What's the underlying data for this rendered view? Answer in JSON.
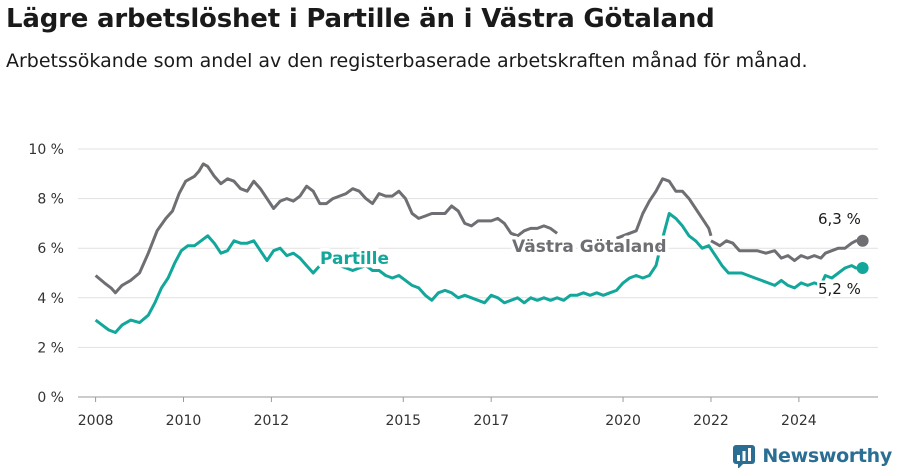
{
  "title": "Lägre arbetslöshet i Partille än i Västra Götaland",
  "subtitle": "Arbetssökande som andel av den registerbaserade arbetskraften månad för månad.",
  "brand": {
    "name": "Newsworthy",
    "color": "#2a6f93"
  },
  "chart_data": {
    "type": "line",
    "title": "Lägre arbetslöshet i Partille än i Västra Götaland",
    "xlabel": "",
    "ylabel": "",
    "xlim": [
      2007.6,
      2025.8
    ],
    "ylim": [
      0,
      10
    ],
    "xticks": [
      2008,
      2010,
      2012,
      2015,
      2017,
      2020,
      2022,
      2024
    ],
    "yticks": [
      {
        "value": 0,
        "label": "0 %"
      },
      {
        "value": 2,
        "label": "2 %"
      },
      {
        "value": 4,
        "label": "4 %"
      },
      {
        "value": 6,
        "label": "6 %"
      },
      {
        "value": 8,
        "label": "8 %"
      },
      {
        "value": 10,
        "label": "10 %"
      }
    ],
    "grid": true,
    "legend": "inline labels",
    "series": [
      {
        "name": "Västra Götaland",
        "color": "#6e6e73",
        "last_value_label": "6,3 %",
        "points": [
          [
            2008.0,
            4.9
          ],
          [
            2008.2,
            4.6
          ],
          [
            2008.35,
            4.4
          ],
          [
            2008.45,
            4.2
          ],
          [
            2008.6,
            4.5
          ],
          [
            2008.8,
            4.7
          ],
          [
            2009.0,
            5.0
          ],
          [
            2009.2,
            5.8
          ],
          [
            2009.4,
            6.7
          ],
          [
            2009.6,
            7.2
          ],
          [
            2009.75,
            7.5
          ],
          [
            2009.9,
            8.2
          ],
          [
            2010.05,
            8.7
          ],
          [
            2010.25,
            8.9
          ],
          [
            2010.35,
            9.1
          ],
          [
            2010.45,
            9.4
          ],
          [
            2010.55,
            9.3
          ],
          [
            2010.7,
            8.9
          ],
          [
            2010.85,
            8.6
          ],
          [
            2011.0,
            8.8
          ],
          [
            2011.15,
            8.7
          ],
          [
            2011.3,
            8.4
          ],
          [
            2011.45,
            8.3
          ],
          [
            2011.6,
            8.7
          ],
          [
            2011.75,
            8.4
          ],
          [
            2011.9,
            8.0
          ],
          [
            2012.05,
            7.6
          ],
          [
            2012.2,
            7.9
          ],
          [
            2012.35,
            8.0
          ],
          [
            2012.5,
            7.9
          ],
          [
            2012.65,
            8.1
          ],
          [
            2012.8,
            8.5
          ],
          [
            2012.95,
            8.3
          ],
          [
            2013.1,
            7.8
          ],
          [
            2013.25,
            7.8
          ],
          [
            2013.4,
            8.0
          ],
          [
            2013.55,
            8.1
          ],
          [
            2013.7,
            8.2
          ],
          [
            2013.85,
            8.4
          ],
          [
            2014.0,
            8.3
          ],
          [
            2014.15,
            8.0
          ],
          [
            2014.3,
            7.8
          ],
          [
            2014.45,
            8.2
          ],
          [
            2014.6,
            8.1
          ],
          [
            2014.75,
            8.1
          ],
          [
            2014.9,
            8.3
          ],
          [
            2015.05,
            8.0
          ],
          [
            2015.2,
            7.4
          ],
          [
            2015.35,
            7.2
          ],
          [
            2015.5,
            7.3
          ],
          [
            2015.65,
            7.4
          ],
          [
            2015.8,
            7.4
          ],
          [
            2015.95,
            7.4
          ],
          [
            2016.1,
            7.7
          ],
          [
            2016.25,
            7.5
          ],
          [
            2016.4,
            7.0
          ],
          [
            2016.55,
            6.9
          ],
          [
            2016.7,
            7.1
          ],
          [
            2016.85,
            7.1
          ],
          [
            2017.0,
            7.1
          ],
          [
            2017.15,
            7.2
          ],
          [
            2017.3,
            7.0
          ],
          [
            2017.45,
            6.6
          ],
          [
            2017.6,
            6.5
          ],
          [
            2017.75,
            6.7
          ],
          [
            2017.9,
            6.8
          ],
          [
            2018.05,
            6.8
          ],
          [
            2018.2,
            6.9
          ],
          [
            2018.35,
            6.8
          ],
          [
            2018.5,
            6.6
          ]
        ],
        "points2": [
          [
            2022.0,
            6.3
          ],
          [
            2022.1,
            6.2
          ],
          [
            2022.2,
            6.1
          ],
          [
            2022.35,
            6.3
          ],
          [
            2022.5,
            6.2
          ],
          [
            2022.65,
            5.9
          ],
          [
            2022.85,
            5.9
          ],
          [
            2023.05,
            5.9
          ],
          [
            2023.25,
            5.8
          ],
          [
            2023.45,
            5.9
          ],
          [
            2023.6,
            5.6
          ],
          [
            2023.75,
            5.7
          ],
          [
            2023.9,
            5.5
          ],
          [
            2024.05,
            5.7
          ],
          [
            2024.2,
            5.6
          ],
          [
            2024.35,
            5.7
          ],
          [
            2024.5,
            5.6
          ],
          [
            2024.6,
            5.8
          ],
          [
            2024.75,
            5.9
          ],
          [
            2024.9,
            6.0
          ],
          [
            2025.05,
            6.0
          ],
          [
            2025.2,
            6.2
          ],
          [
            2025.3,
            6.3
          ],
          [
            2025.45,
            6.3
          ]
        ]
      },
      {
        "name": "Partille",
        "color": "#13a79b",
        "last_value_label": "5,2 %",
        "points": [
          [
            2008.0,
            3.1
          ],
          [
            2008.15,
            2.9
          ],
          [
            2008.3,
            2.7
          ],
          [
            2008.45,
            2.6
          ],
          [
            2008.6,
            2.9
          ],
          [
            2008.8,
            3.1
          ],
          [
            2009.0,
            3.0
          ],
          [
            2009.2,
            3.3
          ],
          [
            2009.35,
            3.8
          ],
          [
            2009.5,
            4.4
          ],
          [
            2009.65,
            4.8
          ],
          [
            2009.8,
            5.4
          ],
          [
            2009.95,
            5.9
          ],
          [
            2010.1,
            6.1
          ],
          [
            2010.25,
            6.1
          ],
          [
            2010.4,
            6.3
          ],
          [
            2010.55,
            6.5
          ],
          [
            2010.7,
            6.2
          ],
          [
            2010.85,
            5.8
          ],
          [
            2011.0,
            5.9
          ],
          [
            2011.15,
            6.3
          ],
          [
            2011.3,
            6.2
          ],
          [
            2011.45,
            6.2
          ],
          [
            2011.6,
            6.3
          ],
          [
            2011.75,
            5.9
          ],
          [
            2011.9,
            5.5
          ],
          [
            2012.05,
            5.9
          ],
          [
            2012.2,
            6.0
          ],
          [
            2012.35,
            5.7
          ],
          [
            2012.5,
            5.8
          ],
          [
            2012.65,
            5.6
          ],
          [
            2012.8,
            5.3
          ],
          [
            2012.95,
            5.0
          ],
          [
            2013.1,
            5.3
          ],
          [
            2013.25,
            5.6
          ],
          [
            2013.4,
            5.4
          ],
          [
            2013.55,
            5.3
          ],
          [
            2013.7,
            5.2
          ],
          [
            2013.85,
            5.1
          ],
          [
            2014.0,
            5.2
          ],
          [
            2014.15,
            5.3
          ],
          [
            2014.3,
            5.1
          ],
          [
            2014.45,
            5.1
          ],
          [
            2014.6,
            4.9
          ],
          [
            2014.75,
            4.8
          ],
          [
            2014.9,
            4.9
          ],
          [
            2015.05,
            4.7
          ],
          [
            2015.2,
            4.5
          ],
          [
            2015.35,
            4.4
          ],
          [
            2015.5,
            4.1
          ],
          [
            2015.65,
            3.9
          ],
          [
            2015.8,
            4.2
          ],
          [
            2015.95,
            4.3
          ],
          [
            2016.1,
            4.2
          ],
          [
            2016.25,
            4.0
          ],
          [
            2016.4,
            4.1
          ],
          [
            2016.55,
            4.0
          ],
          [
            2016.7,
            3.9
          ],
          [
            2016.85,
            3.8
          ],
          [
            2017.0,
            4.1
          ],
          [
            2017.15,
            4.0
          ],
          [
            2017.3,
            3.8
          ],
          [
            2017.45,
            3.9
          ],
          [
            2017.6,
            4.0
          ],
          [
            2017.75,
            3.8
          ],
          [
            2017.9,
            4.0
          ],
          [
            2018.05,
            3.9
          ],
          [
            2018.2,
            4.0
          ],
          [
            2018.35,
            3.9
          ],
          [
            2018.5,
            4.0
          ],
          [
            2018.65,
            3.9
          ],
          [
            2018.8,
            4.1
          ],
          [
            2018.95,
            4.1
          ],
          [
            2019.1,
            4.2
          ],
          [
            2019.25,
            4.1
          ],
          [
            2019.4,
            4.2
          ],
          [
            2019.55,
            4.1
          ],
          [
            2019.7,
            4.2
          ],
          [
            2019.85,
            4.3
          ],
          [
            2020.0,
            4.6
          ],
          [
            2020.15,
            4.8
          ],
          [
            2020.3,
            4.9
          ],
          [
            2020.45,
            4.8
          ],
          [
            2020.6,
            4.9
          ],
          [
            2020.75,
            5.3
          ],
          [
            2020.9,
            6.4
          ],
          [
            2021.05,
            7.4
          ],
          [
            2021.2,
            7.2
          ],
          [
            2021.35,
            6.9
          ],
          [
            2021.5,
            6.5
          ],
          [
            2021.65,
            6.3
          ],
          [
            2021.8,
            6.0
          ],
          [
            2021.95,
            6.1
          ],
          [
            2022.1,
            5.7
          ],
          [
            2022.25,
            5.3
          ],
          [
            2022.4,
            5.0
          ],
          [
            2022.55,
            5.0
          ],
          [
            2022.7,
            5.0
          ],
          [
            2022.85,
            4.9
          ],
          [
            2023.0,
            4.8
          ],
          [
            2023.15,
            4.7
          ],
          [
            2023.3,
            4.6
          ],
          [
            2023.45,
            4.5
          ],
          [
            2023.6,
            4.7
          ],
          [
            2023.75,
            4.5
          ],
          [
            2023.9,
            4.4
          ],
          [
            2024.05,
            4.6
          ],
          [
            2024.2,
            4.5
          ],
          [
            2024.35,
            4.6
          ],
          [
            2024.5,
            4.5
          ],
          [
            2024.6,
            4.9
          ],
          [
            2024.75,
            4.8
          ],
          [
            2024.9,
            5.0
          ],
          [
            2025.05,
            5.2
          ],
          [
            2025.2,
            5.3
          ],
          [
            2025.3,
            5.2
          ],
          [
            2025.45,
            5.2
          ]
        ]
      }
    ],
    "gray_bridge": [
      [
        2019.85,
        6.4
      ],
      [
        2020.0,
        6.5
      ],
      [
        2020.15,
        6.6
      ],
      [
        2020.3,
        6.7
      ],
      [
        2020.45,
        7.4
      ],
      [
        2020.6,
        7.9
      ],
      [
        2020.75,
        8.3
      ],
      [
        2020.9,
        8.8
      ],
      [
        2021.05,
        8.7
      ],
      [
        2021.2,
        8.3
      ],
      [
        2021.35,
        8.3
      ],
      [
        2021.5,
        8.0
      ],
      [
        2021.65,
        7.6
      ],
      [
        2021.8,
        7.2
      ],
      [
        2021.95,
        6.8
      ],
      [
        2022.0,
        6.5
      ]
    ]
  }
}
